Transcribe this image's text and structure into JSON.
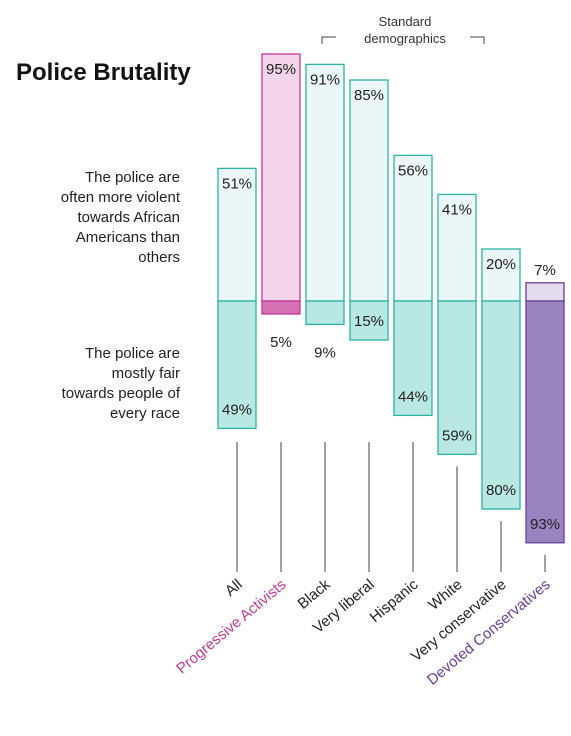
{
  "chart_data": {
    "type": "bar",
    "title": "Police Brutality",
    "series": [
      {
        "name": "The police are often more violent towards African Americans than others",
        "label_lines": [
          "The police are",
          "often more violent",
          "towards African",
          "Americans than",
          "others"
        ],
        "values": [
          51,
          95,
          91,
          85,
          56,
          41,
          20,
          7
        ]
      },
      {
        "name": "The police are mostly fair towards people of every race",
        "label_lines": [
          "The police are",
          "mostly fair",
          "towards people of",
          "every race"
        ],
        "values": [
          49,
          5,
          9,
          15,
          44,
          59,
          80,
          93
        ]
      }
    ],
    "categories": [
      "All",
      "Progressive Activists",
      "Black",
      "Very liberal",
      "Hispanic",
      "White",
      "Very conservative",
      "Devoted Conservatives"
    ],
    "category_colors": [
      "#222222",
      "#c2399a",
      "#222222",
      "#222222",
      "#222222",
      "#222222",
      "#222222",
      "#6a3d9a"
    ],
    "bracket_label": [
      "Standard",
      "demographics"
    ],
    "colors": {
      "default_top_fill": "#eaf7f6",
      "default_bottom_fill": "#b9e7e1",
      "default_stroke": "#2ab5a5",
      "progressive_top_fill": "#f2d5e8",
      "progressive_bottom_fill": "#d472b3",
      "progressive_stroke": "#c2399a",
      "devoted_top_fill": "#e3dbee",
      "devoted_bottom_fill": "#9a84c0",
      "devoted_stroke": "#6a3d9a"
    }
  }
}
